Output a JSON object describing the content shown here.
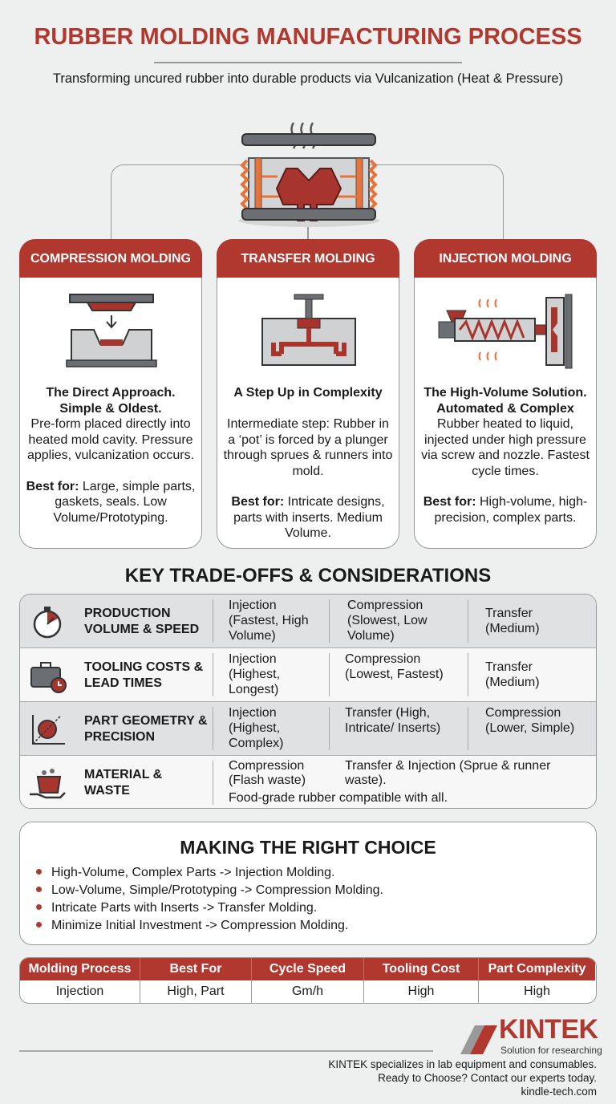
{
  "header": {
    "title": "RUBBER MOLDING MANUFACTURING PROCESS",
    "subtitle": "Transforming uncured rubber into durable products via Vulcanization (Heat & Pressure)"
  },
  "colors": {
    "accent": "#b0382f",
    "heat": "#e8733a",
    "steel": "#6b6e72",
    "background": "#eeefef"
  },
  "processes": [
    {
      "title": "COMPRESSION MOLDING",
      "icon": "compression-mold-icon",
      "tagline": "The Direct Approach. Simple & Oldest.",
      "description": "Pre-form placed directly into heated mold cavity. Pressure applies, vulcanization occurs.",
      "best_label": "Best for:",
      "best": " Large, simple parts, gaskets, seals. Low Volume/Prototyping."
    },
    {
      "title": "TRANSFER MOLDING",
      "icon": "transfer-mold-icon",
      "tagline": "A Step Up in Complexity",
      "description": "Intermediate step: Rubber in a ‘pot’ is forced by a plunger through sprues & runners into mold.",
      "best_label": "Best for:",
      "best": " Intricate designs, parts with inserts. Medium Volume."
    },
    {
      "title": "INJECTION MOLDING",
      "icon": "injection-mold-icon",
      "tagline": "The High-Volume Solution. Automated & Complex",
      "description": "Rubber heated to liquid, injected under high pressure via screw and nozzle. Fastest cycle times.",
      "best_label": "Best for:",
      "best": " High-volume, high-precision, complex parts."
    }
  ],
  "tradeoffs": {
    "title": "KEY TRADE-OFFS & CONSIDERATIONS",
    "rows": [
      {
        "icon": "stopwatch-icon",
        "label": "PRODUCTION VOLUME & SPEED",
        "cells": [
          "Injection (Fastest, High Volume)",
          "Compression (Slowest, Low Volume)",
          "Transfer (Medium)"
        ]
      },
      {
        "icon": "briefcase-clock-icon",
        "label": "TOOLING COSTS & LEAD TIMES",
        "cells": [
          "Injection (Highest, Longest)",
          "Compression (Lowest, Fastest)",
          "Transfer (Medium)"
        ]
      },
      {
        "icon": "geometry-chart-icon",
        "label": "PART GEOMETRY & PRECISION",
        "cells": [
          "Injection (Highest, Complex)",
          "Transfer (High, Intricate/ Inserts)",
          "Compression (Lower, Simple)"
        ]
      },
      {
        "icon": "waste-bin-hand-icon",
        "label": "MATERIAL & WASTE",
        "cells": [
          "Compression (Flash waste)",
          "Transfer & Injection (Sprue & runner waste)."
        ],
        "note": "Food-grade rubber compatible with all."
      }
    ]
  },
  "choice": {
    "title": "MAKING THE RIGHT CHOICE",
    "items": [
      "High-Volume, Complex Parts -> Injection Molding.",
      "Low-Volume, Simple/Prototyping -> Compression Molding.",
      "Intricate Parts with Inserts -> Transfer Molding.",
      "Minimize Initial Investment -> Compression Molding."
    ]
  },
  "summary_table": {
    "headers": [
      "Molding Process",
      "Best For",
      "Cycle Speed",
      "Tooling Cost",
      "Part Complexity"
    ],
    "row": [
      "Injection",
      "High, Part",
      "Gm/h",
      "High",
      "High"
    ]
  },
  "footer": {
    "brand": "KINTEK",
    "tagline": "Solution for researching",
    "lines": [
      "KINTEK specializes in lab equipment and consumables.",
      "Ready to Choose? Contact our experts today.",
      "kindle-tech.com"
    ]
  }
}
